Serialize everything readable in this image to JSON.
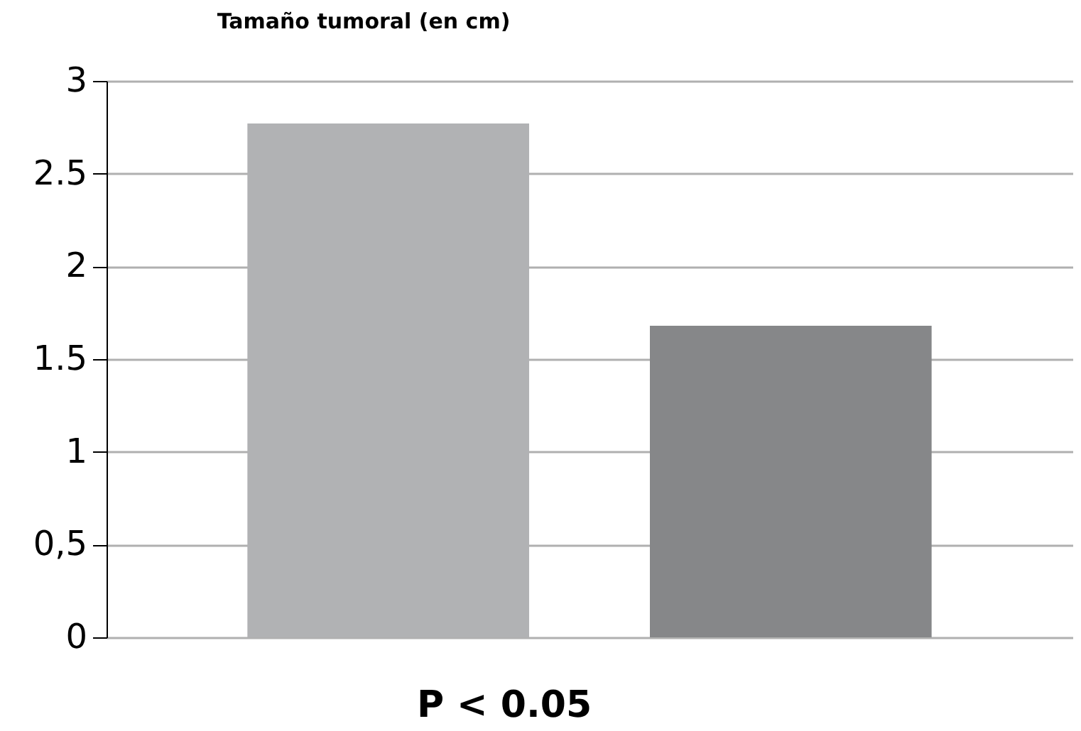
{
  "chart_data": {
    "type": "bar",
    "title": "Tamaño tumoral (en cm)",
    "categories": [
      null,
      null
    ],
    "values": [
      2.77,
      1.68
    ],
    "colors": [
      "#b1b2b4",
      "#868789"
    ],
    "ylim": [
      0,
      3
    ],
    "yticks": [
      0,
      {
        "value": 0.5,
        "label": "0,5"
      },
      1,
      1.5,
      2,
      2.5,
      3
    ],
    "grid": "y",
    "annotations": [
      "P < 0.05"
    ]
  }
}
